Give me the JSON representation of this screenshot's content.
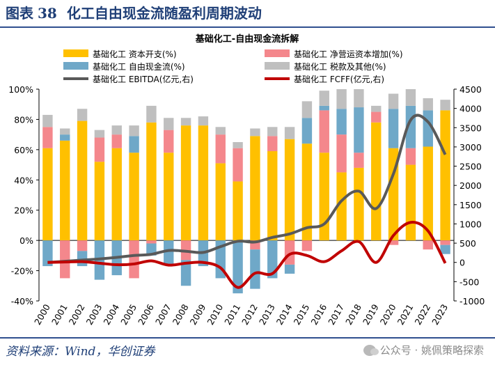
{
  "figure": {
    "label": "图表",
    "number": "38",
    "title": "化工自由现金流随盈利周期波动"
  },
  "source": "资料来源：Wind，华创证券",
  "watermark": "公众号 · 姚佩策略探索",
  "colors": {
    "capex": "#ffc000",
    "working_capital": "#f4878c",
    "fcf_ratio": "#6fa8c8",
    "tax_other": "#bfbfbf",
    "ebitda": "#595959",
    "fcff": "#c00000"
  },
  "chart_data": {
    "type": "bar",
    "title": "基础化工-自由现金流拆解",
    "categories": [
      "2000",
      "2001",
      "2002",
      "2003",
      "2004",
      "2005",
      "2006",
      "2007",
      "2008",
      "2009",
      "2010",
      "2011",
      "2012",
      "2013",
      "2014",
      "2015",
      "2016",
      "2017",
      "2018",
      "2019",
      "2020",
      "2021",
      "2022",
      "2023"
    ],
    "y_left": {
      "lim": [
        -40,
        100
      ],
      "ticks": [
        -40,
        -20,
        0,
        20,
        40,
        60,
        80,
        100
      ],
      "unit": "%"
    },
    "y_right": {
      "lim": [
        -1000,
        4500
      ],
      "ticks": [
        -1000,
        -500,
        0,
        500,
        1000,
        1500,
        2000,
        2500,
        3000,
        3500,
        4000,
        4500
      ]
    },
    "legend": [
      "基础化工 资本开支(%)",
      "基础化工 净营运资本增加(%)",
      "基础化工 自由现金流(%)",
      "基础化工 税款及其他(%)",
      "基础化工 EBITDA(亿元,右)",
      "基础化工 FCFF(亿元,右)"
    ],
    "legend_position": "top",
    "series": [
      {
        "name": "基础化工 资本开支(%)",
        "axis": "left",
        "kind": "bar",
        "values": [
          61,
          66,
          79,
          52,
          61,
          58,
          78,
          58,
          76,
          76,
          51,
          39,
          69,
          59,
          67,
          64,
          58,
          45,
          48,
          78,
          61,
          50,
          62,
          86
        ]
      },
      {
        "name": "基础化工 净营运资本增加(%)",
        "axis": "left",
        "kind": "bar",
        "values": [
          14,
          -25,
          -7,
          16,
          9,
          -25,
          -2,
          15,
          -13,
          0,
          19,
          22,
          -6,
          10,
          -16,
          -7,
          28,
          25,
          10,
          7,
          -3,
          11,
          -6,
          -3
        ]
      },
      {
        "name": "基础化工 自由现金流(%)",
        "axis": "left",
        "kind": "bar",
        "values": [
          -17,
          4,
          -10,
          -26,
          -23,
          11,
          -8,
          -16,
          -17,
          -17,
          -25,
          -35,
          -26,
          -25,
          -6,
          17,
          3,
          17,
          30,
          0,
          26,
          28,
          24,
          -6
        ]
      },
      {
        "name": "基础化工 税款及其他(%)",
        "axis": "left",
        "kind": "bar",
        "values": [
          8,
          4,
          8,
          5,
          6,
          7,
          11,
          8,
          5,
          6,
          5,
          4,
          5,
          6,
          8,
          11,
          10,
          13,
          12,
          4,
          10,
          11,
          8,
          7
        ]
      },
      {
        "name": "基础化工 EBITDA(亿元,右)",
        "axis": "right",
        "kind": "line",
        "values": [
          0,
          30,
          60,
          90,
          130,
          180,
          210,
          310,
          290,
          260,
          410,
          550,
          530,
          650,
          740,
          900,
          1000,
          1600,
          1850,
          1400,
          2300,
          3700,
          3650,
          2800
        ]
      },
      {
        "name": "基础化工 FCFF(亿元,右)",
        "axis": "right",
        "kind": "line",
        "values": [
          0,
          10,
          20,
          -20,
          -60,
          -40,
          40,
          -70,
          -20,
          0,
          -140,
          -650,
          -280,
          -290,
          210,
          180,
          20,
          300,
          540,
          0,
          700,
          1040,
          820,
          -20
        ]
      }
    ]
  }
}
